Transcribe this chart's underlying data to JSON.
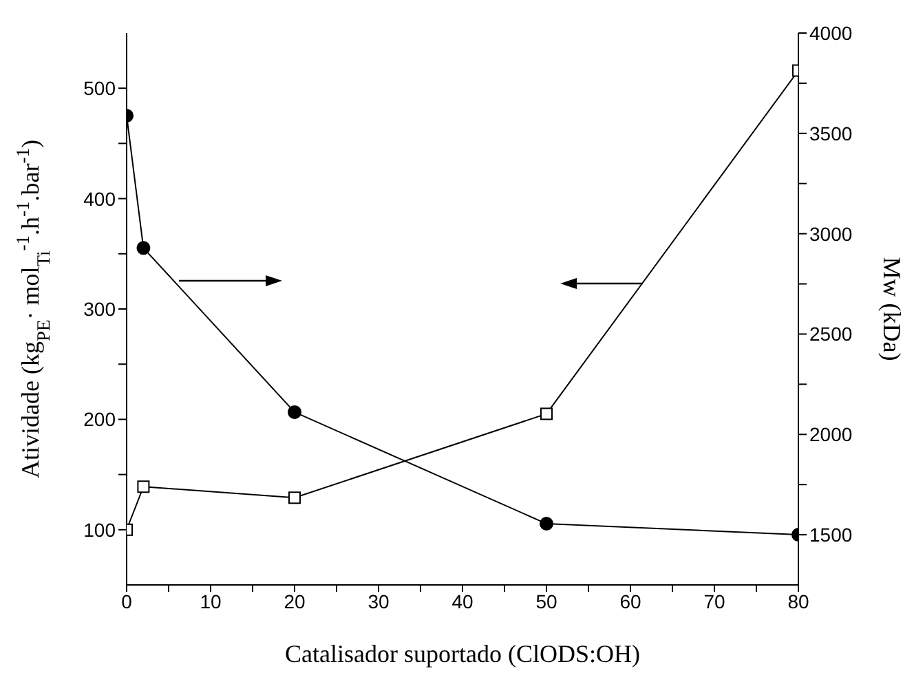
{
  "chart_data": {
    "type": "line",
    "xlabel": "Catalisador suportado (ClODS:OH)",
    "ylabel": "Atividade (kg$_{PE}$· mol$_{Ti}$$^{-1}$.h$^{-1}$.bar$^{-1}$)",
    "y2label": "Mw (kDa)",
    "x": [
      0,
      2,
      20,
      50,
      80
    ],
    "series": [
      {
        "color": "#000000",
        "marker": "square",
        "values": [
          100,
          139,
          129,
          205,
          516
        ]
      },
      {
        "color": "#000000",
        "marker": "circle",
        "axis": "y2",
        "values": [
          3588,
          2929,
          2111,
          1555,
          1500
        ]
      }
    ],
    "xlim": [
      0,
      80
    ],
    "xticks": [
      0,
      {
        "value": 5,
        "label": null
      },
      10,
      {
        "value": 15,
        "label": null
      },
      20,
      {
        "value": 25,
        "label": null
      },
      30,
      {
        "value": 35,
        "label": null
      },
      40,
      {
        "value": 45,
        "label": null
      },
      50,
      {
        "value": 55,
        "label": null
      },
      60,
      {
        "value": 65,
        "label": null
      },
      70,
      {
        "value": 75,
        "label": null
      },
      80
    ],
    "ylim": [
      50,
      550
    ],
    "yticks": [
      100,
      {
        "value": 150,
        "label": null
      },
      200,
      {
        "value": 250,
        "label": null
      },
      300,
      {
        "value": 350,
        "label": null
      },
      400,
      {
        "value": 450,
        "label": null
      },
      500
    ],
    "y2lim": [
      1250,
      4000
    ],
    "y2ticks": [
      1500,
      {
        "value": 1750,
        "label": null
      },
      2000,
      {
        "value": 2250,
        "label": null
      },
      2500,
      {
        "value": 2750,
        "label": null
      },
      3000,
      {
        "value": 3250,
        "label": null
      },
      3500,
      {
        "value": 3750,
        "label": null
      },
      4000
    ],
    "grid": false,
    "legend": false,
    "line_style": "solid"
  }
}
